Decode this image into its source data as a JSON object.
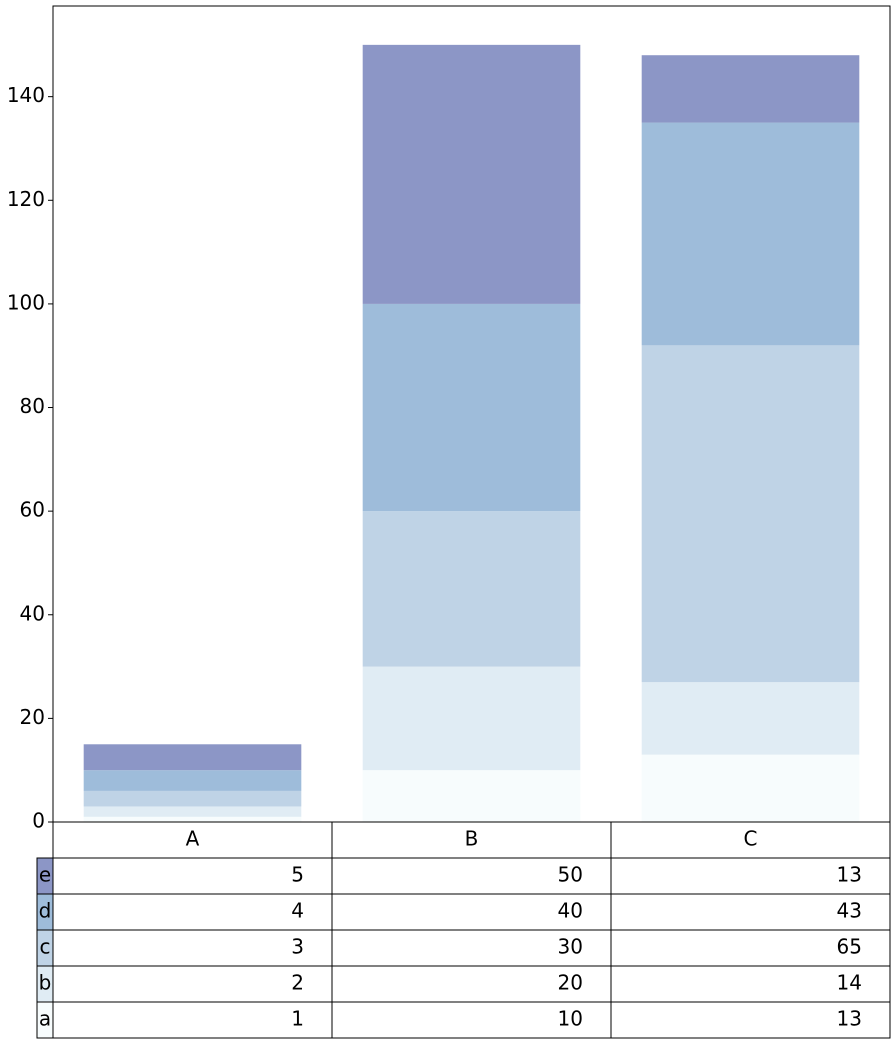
{
  "chart_data": {
    "type": "bar",
    "stacked": true,
    "categories": [
      "A",
      "B",
      "C"
    ],
    "series": [
      {
        "name": "a",
        "color": "#f7fcfd",
        "values": [
          1,
          10,
          13
        ]
      },
      {
        "name": "b",
        "color": "#e0ecf4",
        "values": [
          2,
          20,
          14
        ]
      },
      {
        "name": "c",
        "color": "#bfd3e6",
        "values": [
          3,
          30,
          65
        ]
      },
      {
        "name": "d",
        "color": "#9ebcda",
        "values": [
          4,
          40,
          43
        ]
      },
      {
        "name": "e",
        "color": "#8c96c6",
        "values": [
          5,
          50,
          13
        ]
      }
    ],
    "ylim": [
      0,
      157.5
    ],
    "yticks": [
      0,
      20,
      40,
      60,
      80,
      100,
      120,
      140
    ],
    "grid": false,
    "table": true
  }
}
